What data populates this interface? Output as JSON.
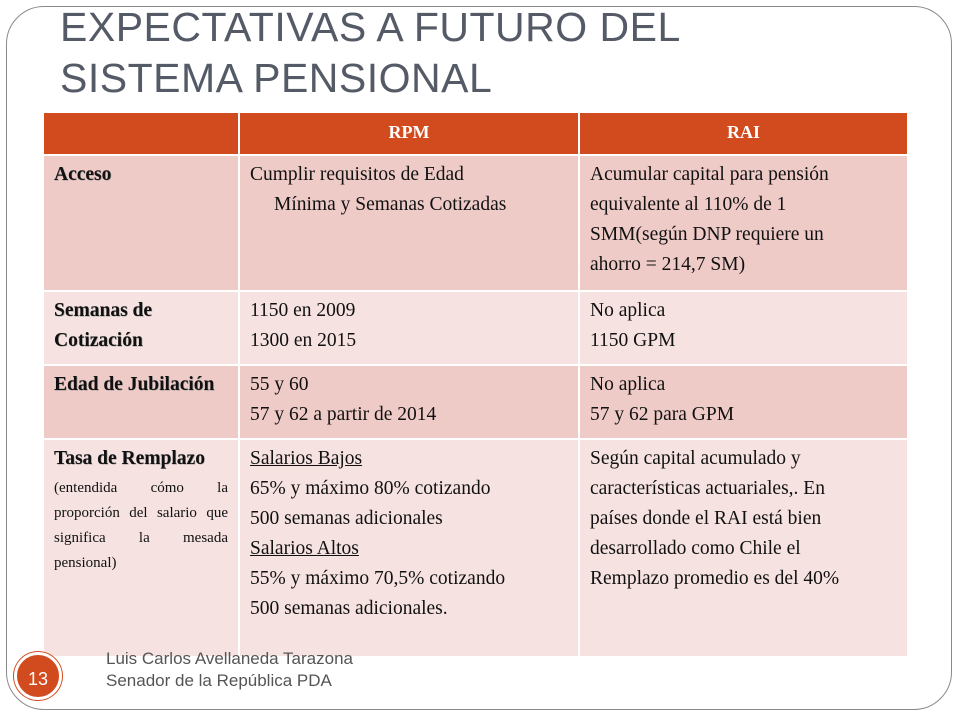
{
  "slide": {
    "title_lines": [
      "EXPECTATIVAS A FUTURO DEL",
      "SISTEMA PENSIONAL"
    ],
    "page_number": "13",
    "footer_lines": [
      "Luis Carlos Avellaneda Tarazona",
      "Senador de la República PDA"
    ],
    "colors": {
      "accent": "#d24b1e",
      "row_dark": "#efcbc8",
      "row_light": "#f6e3e1",
      "title": "#555b66"
    }
  },
  "table": {
    "headers": [
      "",
      "RPM",
      "RAI"
    ],
    "rows": [
      {
        "label": "Acceso",
        "rpm": [
          "Cumplir requisitos de Edad",
          "Mínima  y Semanas Cotizadas"
        ],
        "rai": [
          "Acumular capital para pensión",
          "equivalente al 110% de 1",
          "SMM(según DNP requiere un",
          "ahorro = 214,7 SM)"
        ]
      },
      {
        "label": "Semanas de Cotización",
        "rpm": [
          "1150 en 2009",
          "1300 en 2015"
        ],
        "rai": [
          "No aplica",
          "1150 GPM"
        ]
      },
      {
        "label": "Edad de Jubilación",
        "rpm": [
          "55 y 60",
          "57 y 62 a partir de 2014"
        ],
        "rai": [
          "No aplica",
          "57 y 62 para GPM"
        ]
      },
      {
        "label": "Tasa de Remplazo",
        "note": "(entendida cómo la proporción del salario que significa la mesada pensional)",
        "rpm": [
          "Salarios Bajos",
          "65% y máximo 80% cotizando",
          "500 semanas adicionales",
          "Salarios Altos",
          "55% y máximo 70,5% cotizando",
          "500 semanas adicionales."
        ],
        "rai": [
          "Según capital acumulado y",
          "características actuariales,. En",
          "países donde el RAI está bien",
          "desarrollado como Chile el",
          "Remplazo promedio es del 40%"
        ]
      }
    ]
  }
}
